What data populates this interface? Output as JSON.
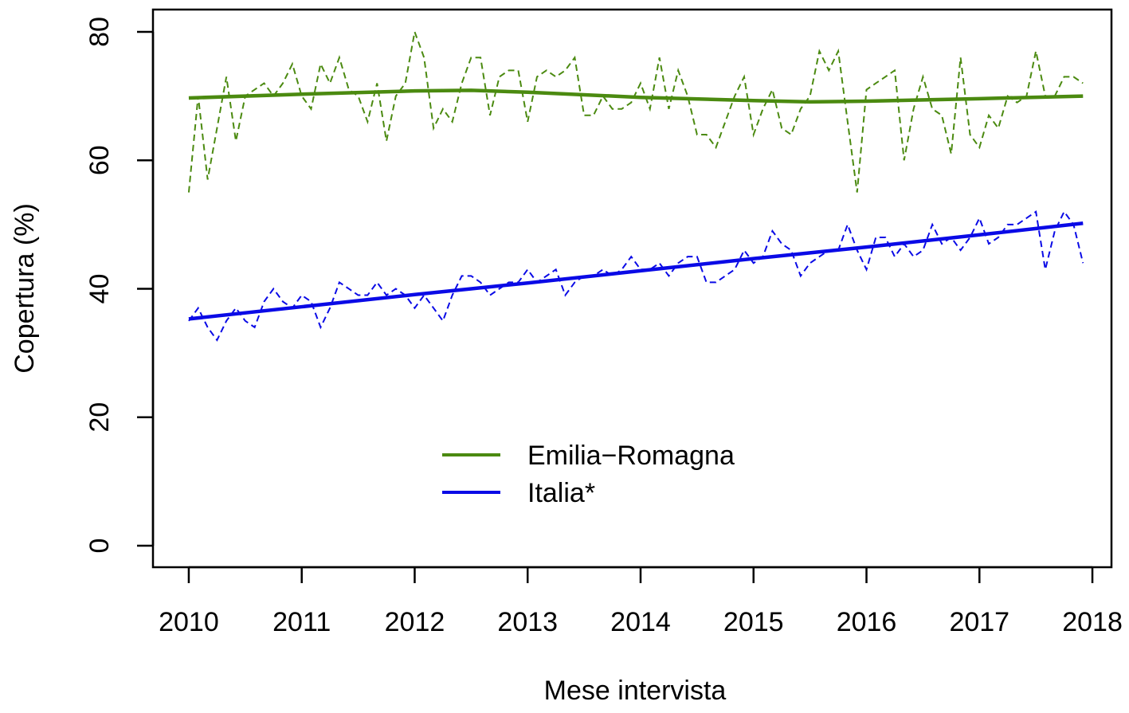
{
  "chart_data": {
    "type": "line",
    "x_label": "Mese intervista",
    "y_label": "Copertura (%)",
    "xlim": [
      2009.683,
      2018.169
    ],
    "ylim": [
      -3.35,
      83.47
    ],
    "xticks": [
      2010,
      2011,
      2012,
      2013,
      2014,
      2015,
      2016,
      2017,
      2018
    ],
    "yticks": [
      0,
      20,
      40,
      60,
      80
    ],
    "legend": "bottom",
    "x": [
      2010,
      2010.083,
      2010.167,
      2010.25,
      2010.333,
      2010.417,
      2010.5,
      2010.583,
      2010.667,
      2010.75,
      2010.833,
      2010.917,
      2011,
      2011.083,
      2011.167,
      2011.25,
      2011.333,
      2011.417,
      2011.5,
      2011.583,
      2011.667,
      2011.75,
      2011.833,
      2011.917,
      2012,
      2012.083,
      2012.167,
      2012.25,
      2012.333,
      2012.417,
      2012.5,
      2012.583,
      2012.667,
      2012.75,
      2012.833,
      2012.917,
      2013,
      2013.083,
      2013.167,
      2013.25,
      2013.333,
      2013.417,
      2013.5,
      2013.583,
      2013.667,
      2013.75,
      2013.833,
      2013.917,
      2014,
      2014.083,
      2014.167,
      2014.25,
      2014.333,
      2014.417,
      2014.5,
      2014.583,
      2014.667,
      2014.75,
      2014.833,
      2014.917,
      2015,
      2015.083,
      2015.167,
      2015.25,
      2015.333,
      2015.417,
      2015.5,
      2015.583,
      2015.667,
      2015.75,
      2015.833,
      2015.917,
      2016,
      2016.083,
      2016.167,
      2016.25,
      2016.333,
      2016.417,
      2016.5,
      2016.583,
      2016.667,
      2016.75,
      2016.833,
      2016.917,
      2017,
      2017.083,
      2017.167,
      2017.25,
      2017.333,
      2017.417,
      2017.5,
      2017.583,
      2017.667,
      2017.75,
      2017.833,
      2017.917
    ],
    "trend_x": [
      2010,
      2011,
      2012,
      2012.5,
      2013,
      2014,
      2015,
      2015.5,
      2016,
      2017,
      2017.917
    ],
    "series": [
      {
        "name": "Emilia−Romagna",
        "color": "#4b8a10",
        "values": [
          55,
          70,
          57,
          65,
          73,
          63,
          70,
          71,
          72,
          70,
          72,
          75,
          70,
          68,
          75,
          72,
          76,
          71,
          70,
          66,
          72,
          63,
          70,
          72,
          80,
          76,
          65,
          68,
          66,
          72,
          76,
          76,
          67,
          73,
          74,
          74,
          66,
          73,
          74,
          73,
          74,
          76,
          67,
          67,
          70,
          68,
          68,
          69,
          72,
          68,
          76,
          68,
          74,
          70,
          64,
          64,
          62,
          66,
          70,
          73,
          64,
          68,
          71,
          65,
          64,
          68,
          70,
          77,
          74,
          77,
          66,
          55,
          71,
          72,
          73,
          74,
          60,
          68,
          73,
          68,
          67,
          61,
          76,
          64,
          62,
          67,
          65,
          70,
          69,
          70,
          77,
          70,
          70,
          73,
          73,
          72
        ],
        "trend": [
          69.7,
          70.3,
          70.8,
          70.9,
          70.6,
          69.8,
          69.3,
          69.1,
          69.2,
          69.6,
          70.0
        ]
      },
      {
        "name": "Italia*",
        "color": "#0a0ae6",
        "values": [
          35,
          37,
          34,
          32,
          35,
          37,
          35,
          34,
          38,
          40,
          38,
          37,
          39,
          38,
          34,
          37,
          41,
          40,
          39,
          39,
          41,
          39,
          40,
          39,
          37,
          39,
          37,
          35,
          39,
          42,
          42,
          41,
          39,
          40,
          41,
          41,
          43,
          41,
          42,
          43,
          39,
          41,
          42,
          42,
          43,
          42,
          43,
          45,
          43,
          43,
          44,
          42,
          44,
          45,
          45,
          41,
          41,
          42,
          43,
          46,
          44,
          45,
          49,
          47,
          46,
          42,
          44,
          45,
          46,
          46,
          50,
          46,
          43,
          48,
          48,
          45,
          47,
          45,
          46,
          50,
          47,
          48,
          46,
          48,
          51,
          47,
          48,
          50,
          50,
          51,
          52,
          43,
          49,
          52,
          50,
          44
        ],
        "trend": [
          35.3,
          37.2,
          39.1,
          40.0,
          40.9,
          42.8,
          44.7,
          45.6,
          46.5,
          48.4,
          50.2
        ]
      }
    ]
  }
}
